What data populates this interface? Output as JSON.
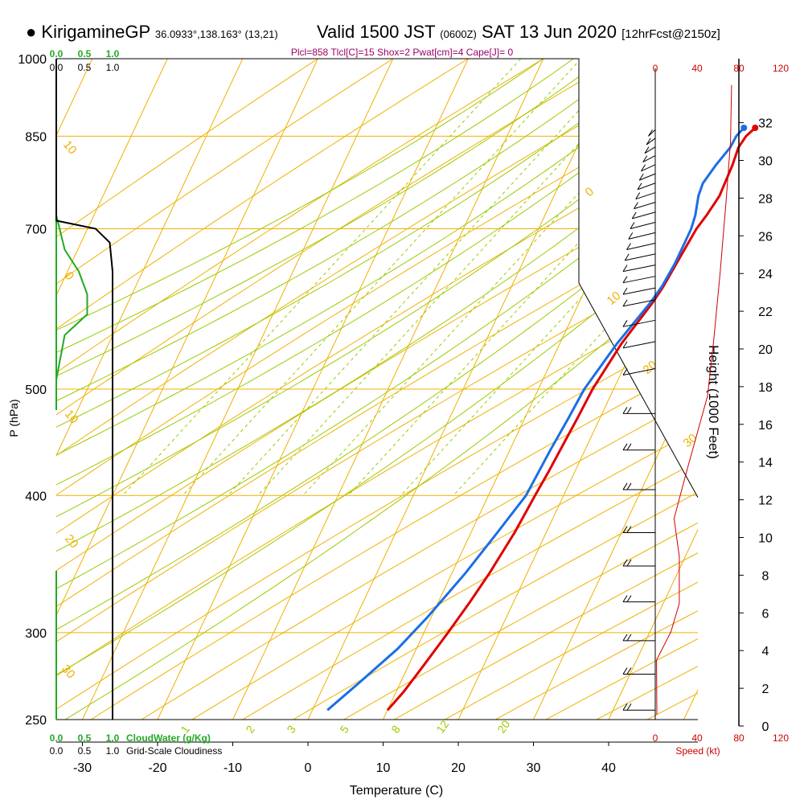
{
  "header": {
    "station": "KirigamineGP",
    "coords": "36.0933°,138.163° (13,21)",
    "valid_label": "Valid 1500 JST",
    "utc": "(0600Z)",
    "date": "SAT 13 Jun 2020",
    "forecast": "[12hrFcst@2150z]"
  },
  "indices": "Plcl=858 Tlcl[C]=15 Shox=2 Pwat[cm]=4 Cape[J]= 0",
  "colors": {
    "isobar": "#f0b000",
    "dry_adiabat": "#f0b000",
    "moist_adiabat": "#99cc00",
    "mixing_ratio": "#99cc00",
    "temperature": "#e00000",
    "dewpoint": "#1a6ee8",
    "cloudwater": "#22aa22",
    "cloudiness": "#000000",
    "speed": "#cc0000"
  },
  "chart_data": {
    "type": "skew-t sounding",
    "xlabel": "Temperature (C)",
    "ylabel": "P (hPa)",
    "x_ticks": [
      -30,
      -20,
      -10,
      0,
      10,
      20,
      30,
      40
    ],
    "pressure_ticks": [
      250,
      300,
      400,
      500,
      700,
      850,
      1000
    ],
    "pressure_range": [
      1000,
      250
    ],
    "log_pressure": true,
    "temperature_profile": [
      {
        "p": 865,
        "t": 22.5
      },
      {
        "p": 850,
        "t": 21.8
      },
      {
        "p": 830,
        "t": 21.5
      },
      {
        "p": 800,
        "t": 21.8
      },
      {
        "p": 750,
        "t": 22.0
      },
      {
        "p": 720,
        "t": 21.5
      },
      {
        "p": 700,
        "t": 21.0
      },
      {
        "p": 680,
        "t": 20.8
      },
      {
        "p": 650,
        "t": 20.5
      },
      {
        "p": 620,
        "t": 20.2
      },
      {
        "p": 600,
        "t": 19.8
      },
      {
        "p": 550,
        "t": 18.2
      },
      {
        "p": 500,
        "t": 17.2
      },
      {
        "p": 470,
        "t": 17.0
      },
      {
        "p": 450,
        "t": 16.8
      },
      {
        "p": 420,
        "t": 16.5
      },
      {
        "p": 400,
        "t": 16.2
      },
      {
        "p": 370,
        "t": 15.8
      },
      {
        "p": 340,
        "t": 15.0
      },
      {
        "p": 320,
        "t": 14.2
      },
      {
        "p": 300,
        "t": 13.2
      },
      {
        "p": 280,
        "t": 12.0
      },
      {
        "p": 265,
        "t": 11.0
      },
      {
        "p": 255,
        "t": 10.0
      }
    ],
    "dewpoint_profile": [
      {
        "p": 865,
        "t": 21.0
      },
      {
        "p": 850,
        "t": 20.5
      },
      {
        "p": 830,
        "t": 20.4
      },
      {
        "p": 800,
        "t": 19.6
      },
      {
        "p": 770,
        "t": 19.0
      },
      {
        "p": 750,
        "t": 19.2
      },
      {
        "p": 720,
        "t": 20.0
      },
      {
        "p": 700,
        "t": 20.3
      },
      {
        "p": 680,
        "t": 20.3
      },
      {
        "p": 650,
        "t": 20.3
      },
      {
        "p": 620,
        "t": 20.0
      },
      {
        "p": 600,
        "t": 19.5
      },
      {
        "p": 550,
        "t": 17.6
      },
      {
        "p": 500,
        "t": 16.1
      },
      {
        "p": 470,
        "t": 15.8
      },
      {
        "p": 440,
        "t": 15.4
      },
      {
        "p": 420,
        "t": 15.2
      },
      {
        "p": 400,
        "t": 15.0
      },
      {
        "p": 370,
        "t": 13.5
      },
      {
        "p": 340,
        "t": 11.8
      },
      {
        "p": 310,
        "t": 9.5
      },
      {
        "p": 290,
        "t": 7.5
      },
      {
        "p": 270,
        "t": 4.5
      },
      {
        "p": 255,
        "t": 2.0
      }
    ],
    "dry_adiabat_labels": [
      "10",
      "0",
      "10",
      "20",
      "30"
    ],
    "moist_adiabat_labels": [
      "0",
      "10",
      "20",
      "30"
    ],
    "mixing_ratio_labels": [
      "1",
      "2",
      "3",
      "5",
      "8",
      "12",
      "20"
    ],
    "cloudwater": {
      "label": "CloudWater (g/Kg)",
      "scale_labels": [
        "0.0",
        "0.5",
        "1.0"
      ],
      "profile": [
        {
          "p": 510,
          "v": 0.0
        },
        {
          "p": 560,
          "v": 0.15
        },
        {
          "p": 585,
          "v": 0.55
        },
        {
          "p": 610,
          "v": 0.55
        },
        {
          "p": 640,
          "v": 0.4
        },
        {
          "p": 670,
          "v": 0.15
        },
        {
          "p": 720,
          "v": 0.0
        }
      ]
    },
    "cloudiness": {
      "label": "Grid-Scale Cloudiness",
      "scale_labels": [
        "0.0",
        "0.5",
        "1.0"
      ],
      "profile": [
        {
          "p": 250,
          "v": 1.0
        },
        {
          "p": 640,
          "v": 1.0
        },
        {
          "p": 680,
          "v": 0.95
        },
        {
          "p": 700,
          "v": 0.7
        },
        {
          "p": 712,
          "v": 0.0
        },
        {
          "p": 1000,
          "v": 0.0
        }
      ]
    },
    "wind": {
      "speed_label": "Speed (kt)",
      "speed_ticks": [
        "0",
        "40",
        "80",
        "120"
      ],
      "speed_profile": [
        {
          "h": 0.6,
          "s": 1.5
        },
        {
          "h": 3.5,
          "s": 1.2
        },
        {
          "h": 5.0,
          "s": 15
        },
        {
          "h": 6.5,
          "s": 23
        },
        {
          "h": 9.0,
          "s": 23
        },
        {
          "h": 11.0,
          "s": 18
        },
        {
          "h": 13.5,
          "s": 30
        },
        {
          "h": 15.5,
          "s": 40
        },
        {
          "h": 17.5,
          "s": 50
        },
        {
          "h": 20.5,
          "s": 56
        },
        {
          "h": 24.0,
          "s": 62
        },
        {
          "h": 28.0,
          "s": 68
        },
        {
          "h": 31.0,
          "s": 72
        },
        {
          "h": 34.0,
          "s": 73
        }
      ],
      "barb_levels_hpa": [
        255,
        275,
        295,
        320,
        345,
        370,
        405,
        440,
        475,
        515,
        545,
        570,
        595,
        610,
        625,
        640,
        655,
        670,
        685,
        700,
        715,
        730,
        745,
        760,
        775,
        790,
        805,
        820,
        835,
        850
      ]
    },
    "height_axis": {
      "label": "Height (1000 Feet)",
      "ticks": [
        "0",
        "2",
        "4",
        "6",
        "8",
        "10",
        "12",
        "14",
        "16",
        "18",
        "20",
        "22",
        "24",
        "26",
        "28",
        "30",
        "32"
      ]
    }
  }
}
